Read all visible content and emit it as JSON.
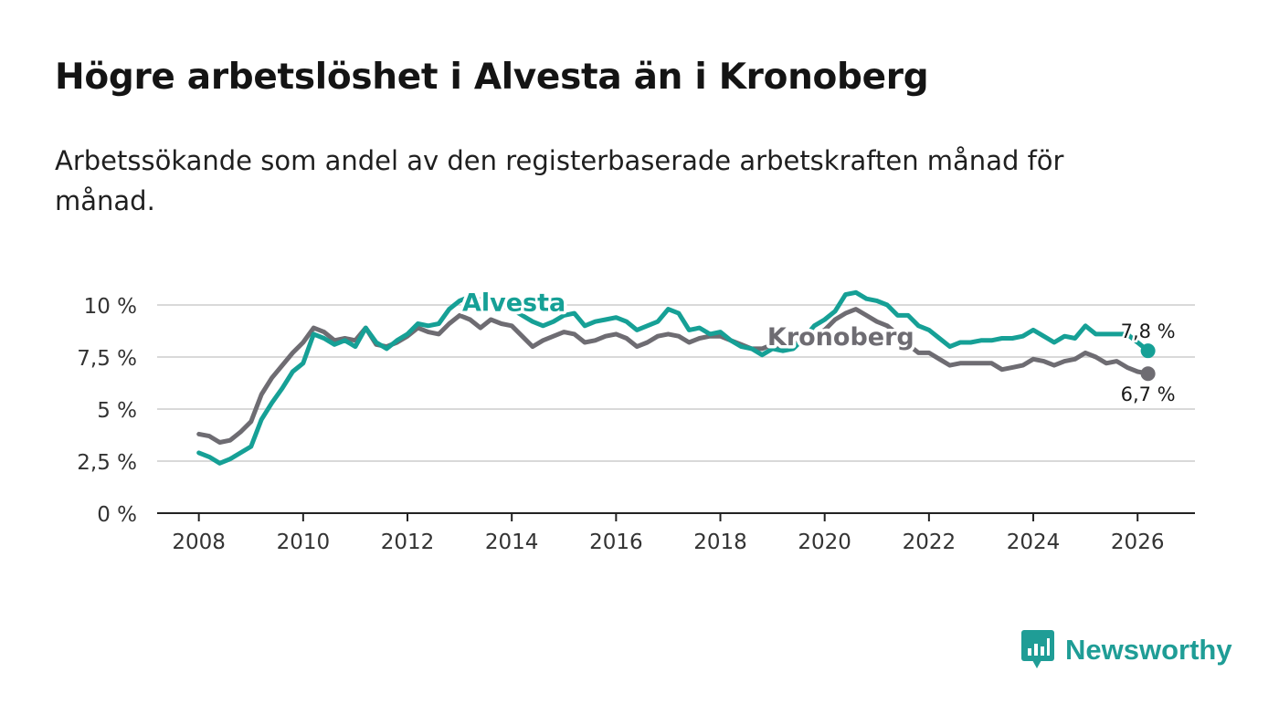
{
  "header": {
    "title": "Högre arbetslöshet i Alvesta än i Kronoberg",
    "subtitle": "Arbetssökande som andel av den registerbaserade arbetskraften månad för månad."
  },
  "brand": {
    "name": "Newsworthy",
    "color": "#1f9d96"
  },
  "chart_data": {
    "type": "line",
    "title": "Högre arbetslöshet i Alvesta än i Kronoberg",
    "xlabel": "",
    "ylabel": "",
    "xlim": [
      2007.2,
      2027.1
    ],
    "ylim": [
      0,
      10
    ],
    "x_ticks": [
      2008,
      2010,
      2012,
      2014,
      2016,
      2018,
      2020,
      2022,
      2024,
      2026
    ],
    "x_tick_labels": [
      "2008",
      "2010",
      "2012",
      "2014",
      "2016",
      "2018",
      "2020",
      "2022",
      "2024",
      "2026"
    ],
    "y_ticks": [
      0,
      2.5,
      5,
      7.5,
      10
    ],
    "y_tick_labels": [
      "0 %",
      "2,5 %",
      "5 %",
      "7,5 %",
      "10 %"
    ],
    "grid": true,
    "series": [
      {
        "name": "Kronoberg",
        "color": "#6e6c72",
        "label_x": 2018.9,
        "label_y": 8.5,
        "end_label": "6,7 %",
        "points": [
          [
            2008.0,
            3.8
          ],
          [
            2008.2,
            3.7
          ],
          [
            2008.4,
            3.4
          ],
          [
            2008.6,
            3.5
          ],
          [
            2008.8,
            3.9
          ],
          [
            2009.0,
            4.4
          ],
          [
            2009.2,
            5.7
          ],
          [
            2009.4,
            6.5
          ],
          [
            2009.6,
            7.1
          ],
          [
            2009.8,
            7.7
          ],
          [
            2010.0,
            8.2
          ],
          [
            2010.2,
            8.9
          ],
          [
            2010.4,
            8.7
          ],
          [
            2010.6,
            8.3
          ],
          [
            2010.8,
            8.4
          ],
          [
            2011.0,
            8.3
          ],
          [
            2011.2,
            8.9
          ],
          [
            2011.4,
            8.1
          ],
          [
            2011.6,
            8.0
          ],
          [
            2011.8,
            8.2
          ],
          [
            2012.0,
            8.5
          ],
          [
            2012.2,
            8.9
          ],
          [
            2012.4,
            8.7
          ],
          [
            2012.6,
            8.6
          ],
          [
            2012.8,
            9.1
          ],
          [
            2013.0,
            9.5
          ],
          [
            2013.2,
            9.3
          ],
          [
            2013.4,
            8.9
          ],
          [
            2013.6,
            9.3
          ],
          [
            2013.8,
            9.1
          ],
          [
            2014.0,
            9.0
          ],
          [
            2014.2,
            8.5
          ],
          [
            2014.4,
            8.0
          ],
          [
            2014.6,
            8.3
          ],
          [
            2014.8,
            8.5
          ],
          [
            2015.0,
            8.7
          ],
          [
            2015.2,
            8.6
          ],
          [
            2015.4,
            8.2
          ],
          [
            2015.6,
            8.3
          ],
          [
            2015.8,
            8.5
          ],
          [
            2016.0,
            8.6
          ],
          [
            2016.2,
            8.4
          ],
          [
            2016.4,
            8.0
          ],
          [
            2016.6,
            8.2
          ],
          [
            2016.8,
            8.5
          ],
          [
            2017.0,
            8.6
          ],
          [
            2017.2,
            8.5
          ],
          [
            2017.4,
            8.2
          ],
          [
            2017.6,
            8.4
          ],
          [
            2017.8,
            8.5
          ],
          [
            2018.0,
            8.5
          ],
          [
            2018.2,
            8.3
          ],
          [
            2018.4,
            8.1
          ],
          [
            2018.6,
            7.9
          ],
          [
            2018.8,
            7.9
          ],
          [
            2019.0,
            8.1
          ],
          [
            2019.2,
            8.0
          ],
          [
            2019.4,
            8.1
          ],
          [
            2019.6,
            8.3
          ],
          [
            2019.8,
            8.6
          ],
          [
            2020.0,
            8.8
          ],
          [
            2020.2,
            9.3
          ],
          [
            2020.4,
            9.6
          ],
          [
            2020.6,
            9.8
          ],
          [
            2020.8,
            9.5
          ],
          [
            2021.0,
            9.2
          ],
          [
            2021.2,
            9.0
          ],
          [
            2021.4,
            8.6
          ],
          [
            2021.6,
            8.1
          ],
          [
            2021.8,
            7.7
          ],
          [
            2022.0,
            7.7
          ],
          [
            2022.2,
            7.4
          ],
          [
            2022.4,
            7.1
          ],
          [
            2022.6,
            7.2
          ],
          [
            2022.8,
            7.2
          ],
          [
            2023.0,
            7.2
          ],
          [
            2023.2,
            7.2
          ],
          [
            2023.4,
            6.9
          ],
          [
            2023.6,
            7.0
          ],
          [
            2023.8,
            7.1
          ],
          [
            2024.0,
            7.4
          ],
          [
            2024.2,
            7.3
          ],
          [
            2024.4,
            7.1
          ],
          [
            2024.6,
            7.3
          ],
          [
            2024.8,
            7.4
          ],
          [
            2025.0,
            7.7
          ],
          [
            2025.2,
            7.5
          ],
          [
            2025.4,
            7.2
          ],
          [
            2025.6,
            7.3
          ],
          [
            2025.8,
            7.0
          ],
          [
            2026.0,
            6.8
          ],
          [
            2026.2,
            6.7
          ]
        ]
      },
      {
        "name": "Alvesta",
        "color": "#16a096",
        "label_x": 2013.05,
        "label_y": 10.15,
        "end_label": "7,8 %",
        "points": [
          [
            2008.0,
            2.9
          ],
          [
            2008.2,
            2.7
          ],
          [
            2008.4,
            2.4
          ],
          [
            2008.6,
            2.6
          ],
          [
            2008.8,
            2.9
          ],
          [
            2009.0,
            3.2
          ],
          [
            2009.2,
            4.5
          ],
          [
            2009.4,
            5.3
          ],
          [
            2009.6,
            6.0
          ],
          [
            2009.8,
            6.8
          ],
          [
            2010.0,
            7.2
          ],
          [
            2010.2,
            8.6
          ],
          [
            2010.4,
            8.4
          ],
          [
            2010.6,
            8.1
          ],
          [
            2010.8,
            8.3
          ],
          [
            2011.0,
            8.0
          ],
          [
            2011.2,
            8.9
          ],
          [
            2011.4,
            8.2
          ],
          [
            2011.6,
            7.9
          ],
          [
            2011.8,
            8.3
          ],
          [
            2012.0,
            8.6
          ],
          [
            2012.2,
            9.1
          ],
          [
            2012.4,
            9.0
          ],
          [
            2012.6,
            9.1
          ],
          [
            2012.8,
            9.8
          ],
          [
            2013.0,
            10.2
          ],
          [
            2013.2,
            10.4
          ],
          [
            2013.6,
            10.1
          ],
          [
            2014.0,
            9.8
          ],
          [
            2014.2,
            9.5
          ],
          [
            2014.4,
            9.2
          ],
          [
            2014.6,
            9.0
          ],
          [
            2014.8,
            9.2
          ],
          [
            2015.0,
            9.5
          ],
          [
            2015.2,
            9.6
          ],
          [
            2015.4,
            9.0
          ],
          [
            2015.6,
            9.2
          ],
          [
            2015.8,
            9.3
          ],
          [
            2016.0,
            9.4
          ],
          [
            2016.2,
            9.2
          ],
          [
            2016.4,
            8.8
          ],
          [
            2016.6,
            9.0
          ],
          [
            2016.8,
            9.2
          ],
          [
            2017.0,
            9.8
          ],
          [
            2017.2,
            9.6
          ],
          [
            2017.4,
            8.8
          ],
          [
            2017.6,
            8.9
          ],
          [
            2017.8,
            8.6
          ],
          [
            2018.0,
            8.7
          ],
          [
            2018.2,
            8.3
          ],
          [
            2018.4,
            8.0
          ],
          [
            2018.6,
            7.9
          ],
          [
            2018.8,
            7.6
          ],
          [
            2019.0,
            7.9
          ],
          [
            2019.2,
            7.8
          ],
          [
            2019.4,
            7.9
          ],
          [
            2019.6,
            8.4
          ],
          [
            2019.8,
            9.0
          ],
          [
            2020.0,
            9.3
          ],
          [
            2020.2,
            9.7
          ],
          [
            2020.4,
            10.5
          ],
          [
            2020.6,
            10.6
          ],
          [
            2020.8,
            10.3
          ],
          [
            2021.0,
            10.2
          ],
          [
            2021.2,
            10.0
          ],
          [
            2021.4,
            9.5
          ],
          [
            2021.6,
            9.5
          ],
          [
            2021.8,
            9.0
          ],
          [
            2022.0,
            8.8
          ],
          [
            2022.2,
            8.4
          ],
          [
            2022.4,
            8.0
          ],
          [
            2022.6,
            8.2
          ],
          [
            2022.8,
            8.2
          ],
          [
            2023.0,
            8.3
          ],
          [
            2023.2,
            8.3
          ],
          [
            2023.4,
            8.4
          ],
          [
            2023.6,
            8.4
          ],
          [
            2023.8,
            8.5
          ],
          [
            2024.0,
            8.8
          ],
          [
            2024.2,
            8.5
          ],
          [
            2024.4,
            8.2
          ],
          [
            2024.6,
            8.5
          ],
          [
            2024.8,
            8.4
          ],
          [
            2025.0,
            9.0
          ],
          [
            2025.2,
            8.6
          ],
          [
            2025.4,
            8.6
          ],
          [
            2025.6,
            8.6
          ],
          [
            2025.8,
            8.6
          ],
          [
            2026.0,
            8.2
          ],
          [
            2026.2,
            7.8
          ]
        ]
      }
    ]
  }
}
